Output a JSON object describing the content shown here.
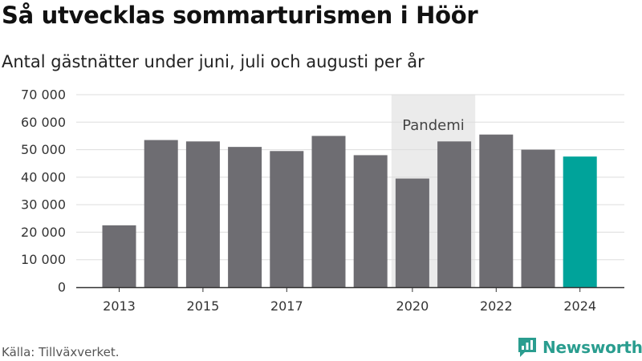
{
  "header": {
    "title": "Så utvecklas sommarturismen i Höör",
    "subtitle": "Antal gästnätter under juni, juli och augusti per år"
  },
  "footer": {
    "source": "Källa: Tillväxverket.",
    "brand": "Newsworthy"
  },
  "colors": {
    "bar": "#6e6d72",
    "highlight": "#00a39a",
    "annotation_band": "#ebebeb",
    "grid": "#dddddd",
    "brand": "#2a9d8f"
  },
  "chart_data": {
    "type": "bar",
    "title": "Så utvecklas sommarturismen i Höör",
    "subtitle": "Antal gästnätter under juni, juli och augusti per år",
    "categories": [
      2013,
      2014,
      2015,
      2016,
      2017,
      2018,
      2019,
      2020,
      2021,
      2022,
      2023,
      2024
    ],
    "values": [
      22500,
      53500,
      53000,
      51000,
      49500,
      55000,
      48000,
      39500,
      53000,
      55500,
      50000,
      47500
    ],
    "highlight_category": 2024,
    "x_tick_labels": [
      "2013",
      "2015",
      "2017",
      "2020",
      "2022",
      "2024"
    ],
    "y_ticks": [
      0,
      10000,
      20000,
      30000,
      40000,
      50000,
      60000,
      70000
    ],
    "y_tick_labels": [
      "0",
      "10 000",
      "20 000",
      "30 000",
      "40 000",
      "50 000",
      "60 000",
      "70 000"
    ],
    "ylim": [
      0,
      70000
    ],
    "grid": true,
    "annotation": {
      "label": "Pandemi",
      "from": 2020,
      "to": 2021
    }
  }
}
